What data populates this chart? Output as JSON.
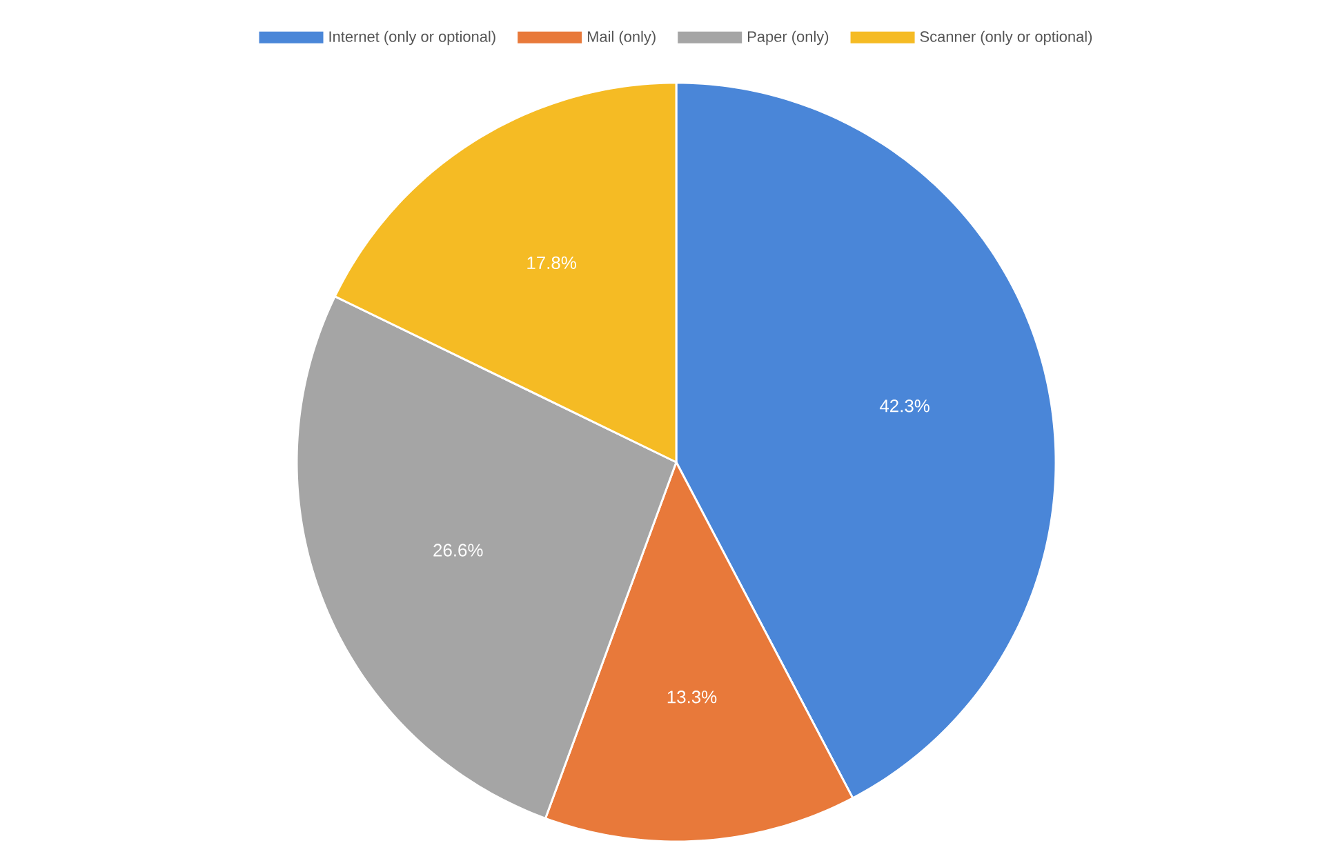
{
  "chart_data": {
    "type": "pie",
    "categories": [
      "Internet (only or optional)",
      "Mail (only)",
      "Paper (only)",
      "Scanner (only or optional)"
    ],
    "values": [
      42.3,
      13.3,
      26.6,
      17.8
    ],
    "colors": [
      "#4a86d8",
      "#e8793a",
      "#a5a5a5",
      "#f5bb24"
    ],
    "value_labels": [
      "42.3%",
      "13.3%",
      "26.6%",
      "17.8%"
    ],
    "legend": "top"
  }
}
